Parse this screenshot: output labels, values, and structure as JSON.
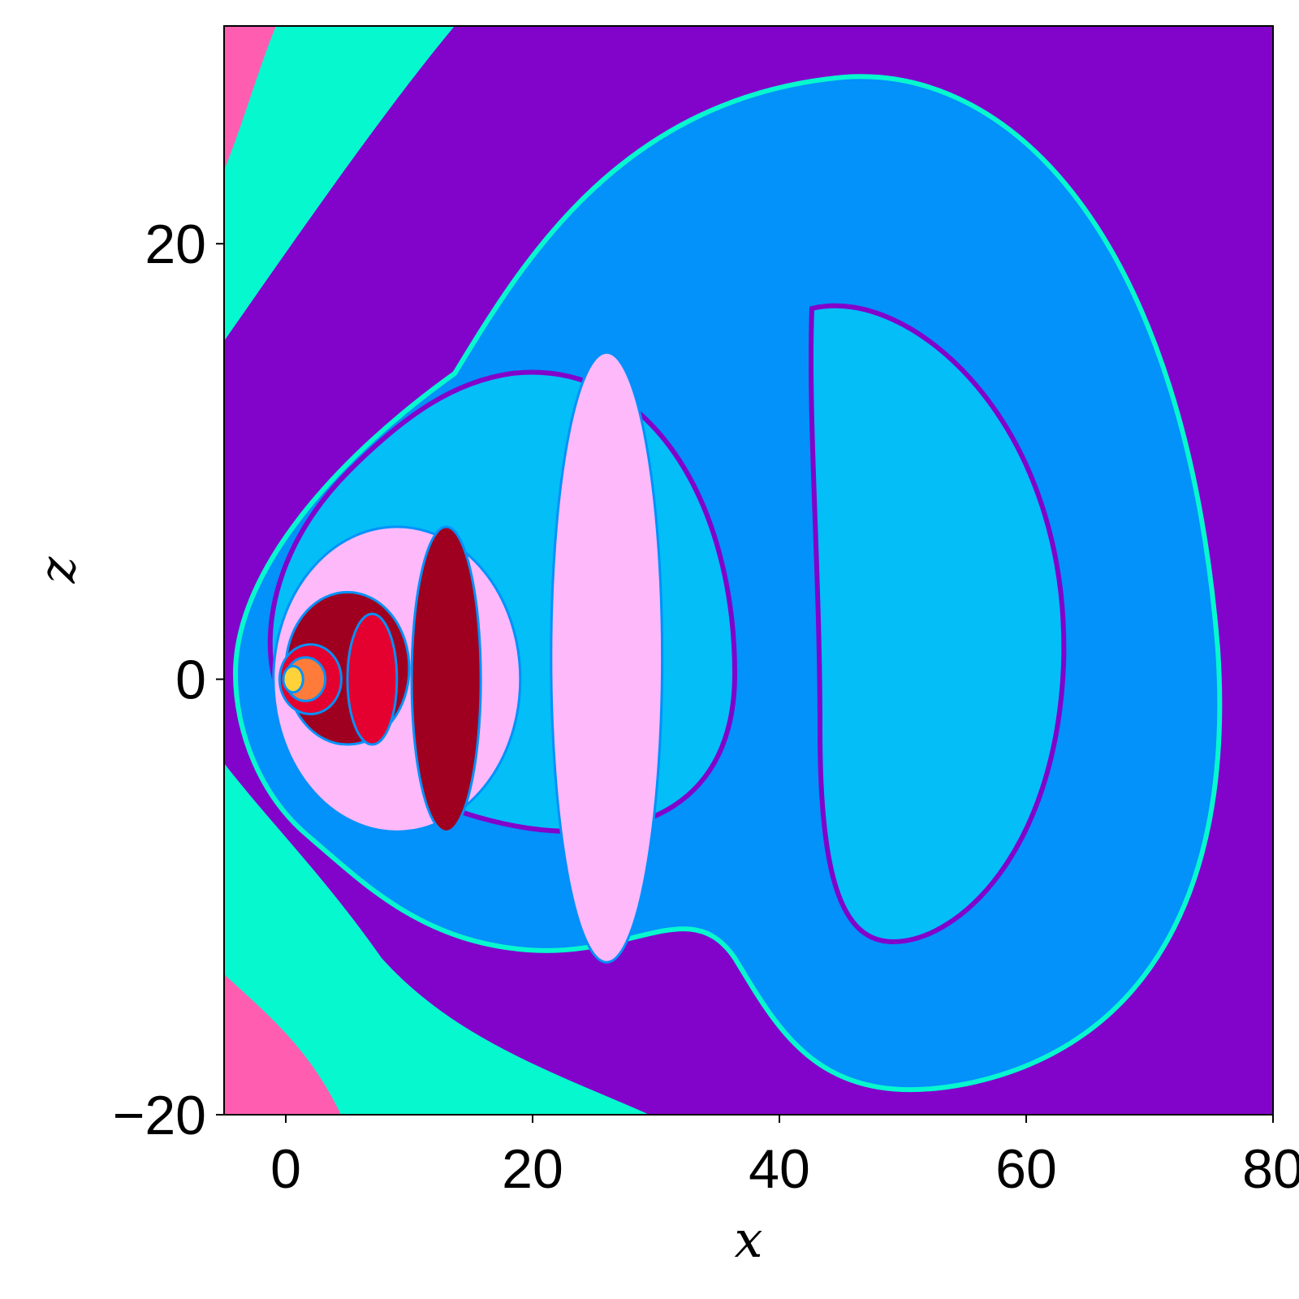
{
  "chart_data": {
    "type": "heatmap",
    "title": "",
    "xlabel": "x",
    "ylabel": "z",
    "xlim": [
      -5,
      80
    ],
    "ylim": [
      -20,
      30
    ],
    "x_ticks": [
      0,
      20,
      40,
      60,
      80
    ],
    "y_ticks": [
      -20,
      0,
      20
    ],
    "x_tick_labels": [
      "0",
      "20",
      "40",
      "60",
      "80"
    ],
    "y_tick_labels": [
      "−20",
      "0",
      "20"
    ],
    "colors": {
      "background": "#8204CB",
      "outer_band": "#06F8CE",
      "pink_band": "#FF5EB0",
      "dark_band": "#A5006B",
      "blue": "#0391FA",
      "cyan": "#03BEF7",
      "light_pink": "#FDB9FA",
      "dark_red": "#A00020",
      "red": "#E4002F",
      "orange": "#FF7B3A",
      "yellow": "#FFD23A"
    },
    "regions": [
      {
        "name": "outer-band-left",
        "color": "outer_band",
        "cx": -6,
        "cz": 2,
        "rx": 10,
        "rz": 44
      },
      {
        "name": "large-blue-basin",
        "color": "blue",
        "cx": 37,
        "cz": 6,
        "rx": 39,
        "rz": 24
      },
      {
        "name": "right-cyan-lobe",
        "color": "cyan",
        "cx": 58.5,
        "cz": 2,
        "rx": 12,
        "rz": 18
      },
      {
        "name": "middle-cyan-basin",
        "color": "cyan",
        "cx": 20,
        "cz": 0,
        "rx": 18,
        "rz": 14
      },
      {
        "name": "light-pink-crescent",
        "color": "light_pink",
        "cx": 26,
        "cz": 1,
        "rx": 4.5,
        "rz": 14
      },
      {
        "name": "light-pink-core",
        "color": "light_pink",
        "cx": 9,
        "cz": 0,
        "rx": 10,
        "rz": 7
      },
      {
        "name": "dark-red-crescent",
        "color": "dark_red",
        "cx": 13,
        "cz": 0,
        "rx": 2.8,
        "rz": 7
      },
      {
        "name": "dark-red-core",
        "color": "dark_red",
        "cx": 5,
        "cz": 0.5,
        "rx": 5,
        "rz": 3.5
      },
      {
        "name": "red-lobe",
        "color": "red",
        "cx": 7,
        "cz": 0,
        "rx": 2,
        "rz": 3
      },
      {
        "name": "red-center",
        "color": "red",
        "cx": 2,
        "cz": 0,
        "rx": 2.5,
        "rz": 1.6
      },
      {
        "name": "orange-center",
        "color": "orange",
        "cx": 1.6,
        "cz": 0,
        "rx": 1.6,
        "rz": 1
      },
      {
        "name": "yellow-center",
        "color": "yellow",
        "cx": 0.6,
        "cz": 0,
        "rx": 0.8,
        "rz": 0.6
      }
    ]
  }
}
